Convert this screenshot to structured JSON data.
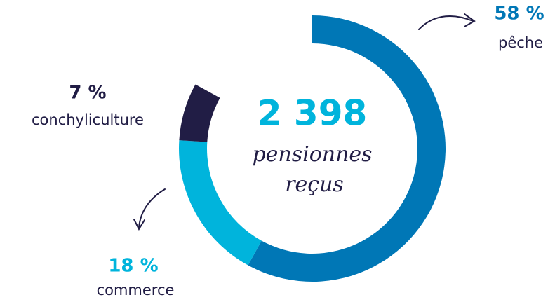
{
  "chart_data": {
    "type": "donut",
    "center_value": "2 398",
    "center_text": [
      "pensionnes",
      "reçus"
    ],
    "categories": [
      "pêche",
      "commerce",
      "conchyliculture"
    ],
    "values": [
      58,
      18,
      7
    ],
    "value_labels": [
      "58 %",
      "18 %",
      "7 %"
    ],
    "colors": [
      "#0077b6",
      "#00b4dc",
      "#211d45"
    ]
  }
}
